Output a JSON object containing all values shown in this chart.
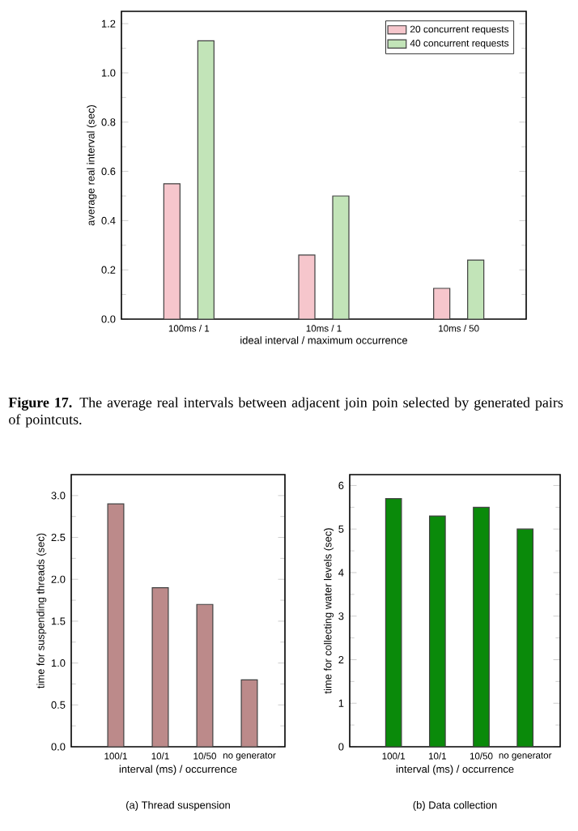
{
  "chart_data": [
    {
      "type": "bar",
      "xlabel": "ideal interval / maximum occurrence",
      "ylabel": "average real interval (sec)",
      "categories": [
        "100ms / 1",
        "10ms / 1",
        "10ms / 50"
      ],
      "series": [
        {
          "name": "20 concurrent requests",
          "color": "#f6c6cc",
          "values": [
            0.55,
            0.26,
            0.125
          ]
        },
        {
          "name": "40 concurrent requests",
          "color": "#c2e4b8",
          "values": [
            1.13,
            0.5,
            0.24
          ]
        }
      ],
      "ylim": [
        0,
        1.25
      ],
      "yticks": [
        {
          "value": 0,
          "label": "0.0"
        },
        {
          "value": 0.2,
          "label": "0.2"
        },
        {
          "value": 0.4,
          "label": "0.4"
        },
        {
          "value": 0.6,
          "label": "0.6"
        },
        {
          "value": 0.8,
          "label": "0.8"
        },
        {
          "value": 1.0,
          "label": "1.0"
        },
        {
          "value": 1.2,
          "label": "1.2"
        }
      ],
      "legend": "top right",
      "annotations": [
        "**Figure 17.** The average real intervals between adjacent join poin selected by generated pairs of pointcuts."
      ]
    },
    {
      "type": "bar",
      "xlabel": "interval (ms) / occurrence",
      "ylabel": "time for suspending threads (sec)",
      "categories": [
        "100/1",
        "10/1",
        "10/50",
        "no generator"
      ],
      "series": [
        {
          "color": "#bc8a8a",
          "values": [
            2.9,
            1.9,
            1.7,
            0.8
          ]
        }
      ],
      "ylim": [
        0,
        3.25
      ],
      "yticks": [
        {
          "value": 0,
          "label": "0.0"
        },
        {
          "value": 0.5,
          "label": "0.5"
        },
        {
          "value": 1.0,
          "label": "1.0"
        },
        {
          "value": 1.5,
          "label": "1.5"
        },
        {
          "value": 2.0,
          "label": "2.0"
        },
        {
          "value": 2.5,
          "label": "2.5"
        },
        {
          "value": 3.0,
          "label": "3.0"
        }
      ],
      "annotations": [
        "(a) Thread suspension"
      ]
    },
    {
      "type": "bar",
      "xlabel": "interval (ms) / occurrence",
      "ylabel": "time for collecting water levels (sec)",
      "categories": [
        "100/1",
        "10/1",
        "10/50",
        "no generator"
      ],
      "series": [
        {
          "color": "#0a8a0a",
          "values": [
            5.7,
            5.3,
            5.5,
            5.0
          ]
        }
      ],
      "ylim": [
        0,
        6.25
      ],
      "yticks": [
        0,
        1,
        2,
        3,
        4,
        5,
        6
      ],
      "annotations": [
        "(b) Data collection"
      ]
    }
  ]
}
